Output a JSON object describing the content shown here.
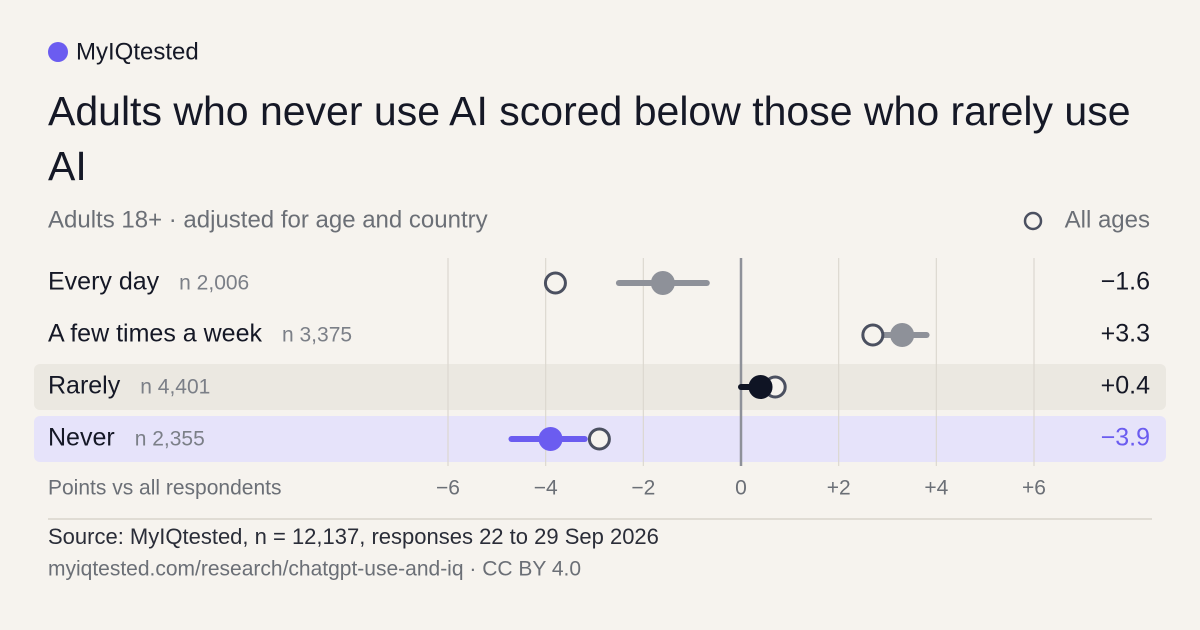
{
  "chart_data": {
    "type": "dot",
    "brand": "MyIQtested",
    "title": "Adults who never use AI scored below those who rarely use AI",
    "subtitle": "Adults 18+ · adjusted for age and country",
    "legend_label": "All ages",
    "x_label": "Points vs all respondents",
    "categories": [
      "Every day",
      "A few times a week",
      "Rarely",
      "Never"
    ],
    "n_labels": [
      "n 2,006",
      "n 3,375",
      "n 4,401",
      "n 2,355"
    ],
    "values": [
      -1.6,
      3.3,
      0.4,
      -3.9
    ],
    "value_labels": [
      "−1.6",
      "+3.3",
      "+0.4",
      "−3.9"
    ],
    "ci_low": [
      -2.5,
      2.9,
      0.0,
      -4.7
    ],
    "ci_high": [
      -0.7,
      3.8,
      0.6,
      -3.2
    ],
    "all_ages": [
      -3.8,
      2.7,
      0.7,
      -2.9
    ],
    "colors": [
      "#8e9199",
      "#8e9199",
      "#0f1424",
      "#6b5cf0"
    ],
    "value_label_colors": [
      "#151826",
      "#151826",
      "#151826",
      "#6b5cf0"
    ],
    "row_backgrounds": [
      "none",
      "none",
      "#ebe8e1",
      "#e6e3fa"
    ],
    "xlim": [
      -6,
      6
    ],
    "xticks": [
      {
        "value": -6,
        "label": "−6"
      },
      {
        "value": -4,
        "label": "−4"
      },
      {
        "value": -2,
        "label": "−2"
      },
      0,
      {
        "value": 2,
        "label": "+2"
      },
      {
        "value": 4,
        "label": "+4"
      },
      {
        "value": 6,
        "label": "+6"
      }
    ],
    "grid": true,
    "source": "Source: MyIQtested, n = 12,137, responses 22 to 29 Sep 2026",
    "url": "myiqtested.com/research/chatgpt-use-and-iq · CC BY 4.0"
  }
}
